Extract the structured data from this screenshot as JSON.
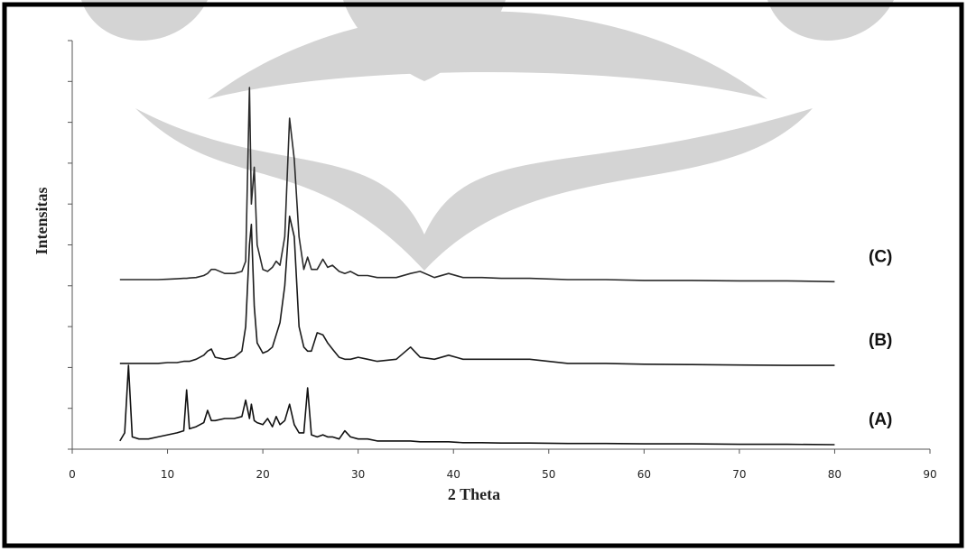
{
  "chart_data": {
    "type": "line",
    "xlabel": "2 Theta",
    "ylabel": "Intensitas",
    "xlim": [
      0,
      90
    ],
    "xticks": [
      0,
      10,
      20,
      30,
      40,
      50,
      60,
      70,
      80,
      90
    ],
    "ylim": [
      0,
      100
    ],
    "x": [
      5,
      5.5,
      5.9,
      6.3,
      7,
      8,
      9,
      10,
      11,
      11.7,
      12,
      12.3,
      13,
      13.8,
      14.2,
      14.6,
      15,
      16,
      17,
      17.8,
      18.2,
      18.6,
      18.8,
      19.1,
      19.4,
      20,
      20.5,
      21,
      21.4,
      21.8,
      22.3,
      22.8,
      23.3,
      23.8,
      24.3,
      24.7,
      25.1,
      25.7,
      26.3,
      26.8,
      27.3,
      28,
      28.6,
      29.2,
      30,
      31,
      32,
      34,
      35.5,
      36.5,
      38,
      39.5,
      41,
      43,
      45,
      48,
      52,
      56,
      60,
      65,
      70,
      75,
      80
    ],
    "series": [
      {
        "name": "(A)",
        "color": "#111111",
        "values": [
          2,
          4,
          20.5,
          3,
          2.5,
          2.5,
          3,
          3.5,
          4,
          4.5,
          14.5,
          5,
          5.5,
          6.5,
          9.5,
          7,
          7,
          7.5,
          7.5,
          8,
          12,
          7.5,
          11,
          7,
          6.5,
          6,
          7.5,
          5.5,
          8,
          6,
          7,
          11,
          6,
          4,
          4,
          15,
          3.5,
          3,
          3.5,
          3,
          3,
          2.5,
          4.5,
          3,
          2.5,
          2.5,
          2,
          2,
          2,
          1.8,
          1.8,
          1.8,
          1.6,
          1.6,
          1.5,
          1.5,
          1.4,
          1.4,
          1.3,
          1.3,
          1.2,
          1.2,
          1.1
        ]
      },
      {
        "name": "(B)",
        "color": "#1a1a1a",
        "values": [
          21,
          21,
          21,
          21,
          21,
          21,
          21,
          21.2,
          21.2,
          21.5,
          21.5,
          21.5,
          22,
          23,
          24,
          24.5,
          22.5,
          22,
          22.5,
          24,
          30,
          50,
          55,
          35,
          26,
          23.5,
          24,
          25,
          28,
          31,
          40,
          57,
          52,
          30,
          25,
          24,
          24,
          28.5,
          28,
          26,
          24.5,
          22.5,
          22,
          22,
          22.5,
          22,
          21.5,
          22,
          25,
          22.5,
          22,
          23,
          22,
          22,
          22,
          22,
          21,
          21,
          20.8,
          20.7,
          20.6,
          20.5,
          20.5
        ]
      },
      {
        "name": "(C)",
        "color": "#2a2a2a",
        "values": [
          41.5,
          41.5,
          41.5,
          41.5,
          41.5,
          41.5,
          41.5,
          41.6,
          41.7,
          41.8,
          41.8,
          41.9,
          42,
          42.5,
          43,
          44,
          44,
          43,
          43,
          43.5,
          46,
          88.5,
          60,
          69,
          50,
          44,
          43.5,
          44.5,
          46,
          45,
          52,
          81,
          71,
          52,
          44,
          47,
          44,
          44,
          46.5,
          44.5,
          45,
          43.5,
          43,
          43.5,
          42.5,
          42.5,
          42,
          42,
          43,
          43.5,
          42,
          43,
          42,
          42,
          41.8,
          41.8,
          41.5,
          41.5,
          41.3,
          41.3,
          41.2,
          41.2,
          41
        ]
      }
    ]
  }
}
